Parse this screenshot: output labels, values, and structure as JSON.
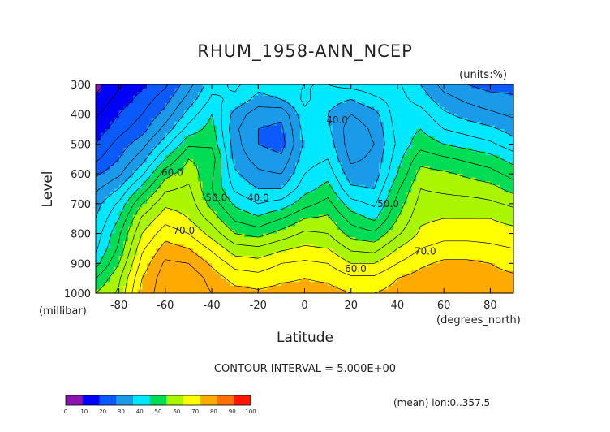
{
  "chart_data": {
    "type": "heatmap",
    "title": "RHUM_1958-ANN_NCEP",
    "units": "(units:%)",
    "xlabel": "Latitude",
    "x_unit_label": "(degrees_north)",
    "ylabel": "Level",
    "y_unit_label": "(millibar)",
    "xlim": [
      -90,
      90
    ],
    "ylim": [
      1000,
      300
    ],
    "xticks": [
      -80,
      -60,
      -40,
      -20,
      0,
      20,
      40,
      60,
      80
    ],
    "yticks": [
      300,
      400,
      500,
      600,
      700,
      800,
      900,
      1000
    ],
    "contour_interval_text": "CONTOUR INTERVAL = 5.000E+00",
    "footer_note": "(mean) lon:0..357.5",
    "contour_labels": [
      {
        "text": "60.0",
        "lat": -57,
        "level": 595
      },
      {
        "text": "50.0",
        "lat": -38,
        "level": 680
      },
      {
        "text": "40.0",
        "lat": -20,
        "level": 680
      },
      {
        "text": "40.0",
        "lat": 14,
        "level": 420
      },
      {
        "text": "70.0",
        "lat": -52,
        "level": 790
      },
      {
        "text": "50.0",
        "lat": 36,
        "level": 700
      },
      {
        "text": "60.0",
        "lat": 22,
        "level": 918
      },
      {
        "text": "70.0",
        "lat": 52,
        "level": 860
      }
    ],
    "colorbar": {
      "ticks": [
        "0",
        "10",
        "20",
        "30",
        "40",
        "50",
        "60",
        "70",
        "80",
        "90",
        "100"
      ],
      "colors": [
        "#8a14b0",
        "#0000ff",
        "#0a5aff",
        "#1a9ae8",
        "#00e8ff",
        "#00dd55",
        "#aaf500",
        "#ffff00",
        "#ffaa00",
        "#ff7000",
        "#ff1500"
      ]
    },
    "levels_grid": [
      300,
      350,
      400,
      450,
      500,
      550,
      600,
      650,
      700,
      750,
      800,
      850,
      900,
      950,
      1000
    ],
    "lats_grid": [
      -90,
      -80,
      -70,
      -60,
      -50,
      -40,
      -30,
      -20,
      -10,
      0,
      10,
      20,
      30,
      40,
      50,
      60,
      70,
      80,
      90
    ],
    "values": [
      [
        8,
        14,
        19,
        24,
        33,
        43,
        46,
        42,
        44,
        45,
        45,
        47,
        48,
        46,
        40,
        33,
        30,
        28,
        28
      ],
      [
        11,
        17,
        22,
        28,
        37,
        46,
        44,
        38,
        40,
        46,
        42,
        40,
        44,
        47,
        43,
        37,
        34,
        32,
        31
      ],
      [
        14,
        20,
        25,
        32,
        42,
        50,
        38,
        32,
        31,
        44,
        40,
        35,
        38,
        48,
        47,
        41,
        38,
        36,
        34
      ],
      [
        17,
        23,
        28,
        37,
        47,
        52,
        36,
        30,
        29,
        42,
        41,
        32,
        36,
        47,
        50,
        45,
        43,
        41,
        38
      ],
      [
        20,
        27,
        33,
        43,
        54,
        54,
        37,
        30,
        28,
        41,
        43,
        32,
        35,
        46,
        53,
        50,
        48,
        46,
        42
      ],
      [
        24,
        30,
        38,
        50,
        60,
        58,
        38,
        33,
        31,
        43,
        45,
        34,
        36,
        48,
        58,
        56,
        54,
        52,
        48
      ],
      [
        29,
        34,
        44,
        58,
        63,
        56,
        41,
        36,
        35,
        45,
        48,
        37,
        37,
        50,
        62,
        61,
        59,
        57,
        53
      ],
      [
        34,
        40,
        52,
        64,
        66,
        55,
        44,
        40,
        40,
        48,
        52,
        41,
        40,
        54,
        65,
        64,
        63,
        62,
        58
      ],
      [
        38,
        46,
        60,
        69,
        68,
        58,
        49,
        45,
        47,
        53,
        57,
        47,
        44,
        57,
        67,
        67,
        67,
        66,
        64
      ],
      [
        40,
        50,
        66,
        73,
        70,
        63,
        54,
        51,
        55,
        60,
        61,
        53,
        49,
        60,
        69,
        70,
        70,
        70,
        68
      ],
      [
        42,
        54,
        70,
        78,
        75,
        68,
        60,
        58,
        62,
        66,
        65,
        58,
        56,
        64,
        71,
        73,
        73,
        73,
        72
      ],
      [
        44,
        56,
        74,
        82,
        80,
        74,
        67,
        66,
        69,
        71,
        70,
        64,
        63,
        70,
        75,
        77,
        77,
        76,
        75
      ],
      [
        48,
        60,
        77,
        86,
        85,
        79,
        73,
        72,
        75,
        76,
        75,
        70,
        70,
        75,
        79,
        81,
        81,
        80,
        78
      ],
      [
        55,
        64,
        80,
        88,
        89,
        83,
        78,
        77,
        79,
        80,
        79,
        76,
        76,
        80,
        82,
        84,
        83,
        82,
        81
      ],
      [
        60,
        66,
        82,
        88,
        89,
        85,
        82,
        81,
        82,
        82,
        82,
        80,
        80,
        82,
        84,
        85,
        84,
        83,
        82
      ]
    ]
  }
}
